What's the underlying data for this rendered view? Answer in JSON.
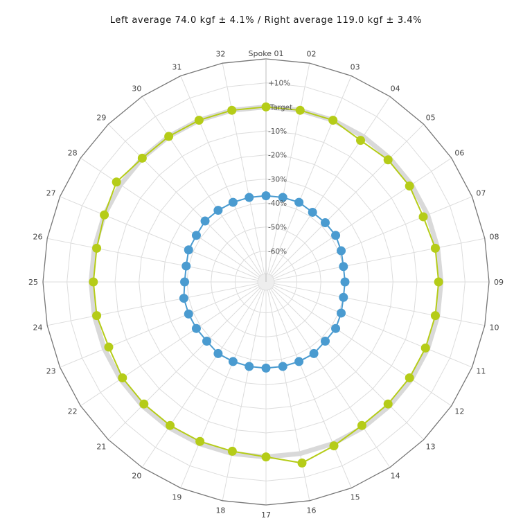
{
  "title": "Left average 74.0 kgf ± 4.1% / Right average 119.0 kgf ± 3.4%",
  "chart_data": {
    "type": "radar",
    "title": "Left average 74.0 kgf ± 4.1% / Right average 119.0 kgf ± 3.4%",
    "spokes": [
      "Spoke 01",
      "02",
      "03",
      "04",
      "05",
      "06",
      "07",
      "08",
      "09",
      "10",
      "11",
      "12",
      "13",
      "14",
      "15",
      "16",
      "17",
      "18",
      "19",
      "20",
      "21",
      "22",
      "23",
      "24",
      "25",
      "26",
      "27",
      "28",
      "29",
      "30",
      "31",
      "32"
    ],
    "ring_labels": [
      "+10%",
      "Target",
      "-10%",
      "-20%",
      "-30%",
      "-40%",
      "-50%",
      "-60%"
    ],
    "rlim": [
      -70,
      20
    ],
    "grid": true,
    "target_band": {
      "center": 0,
      "color": "#d9d9d9"
    },
    "series": [
      {
        "side": "right",
        "color": "#b5cc18",
        "values": [
          0,
          0,
          0,
          -2,
          -1,
          -1,
          -2,
          -1,
          -1,
          -1,
          -1,
          -1,
          -1,
          -1,
          1,
          4,
          0,
          -1,
          -1,
          -1,
          -1,
          -1,
          -2,
          -1,
          -1,
          -1,
          0,
          2,
          0,
          0,
          0,
          0
        ]
      },
      {
        "side": "left",
        "color": "#4a9bd0",
        "values": [
          -37,
          -37,
          -37,
          -38,
          -38,
          -38,
          -39,
          -40,
          -40,
          -40,
          -39,
          -38,
          -38,
          -37,
          -37,
          -37,
          -37,
          -37,
          -37,
          -37,
          -38,
          -38,
          -38,
          -38,
          -39,
          -39,
          -38,
          -38,
          -37,
          -37,
          -37,
          -37
        ]
      }
    ]
  }
}
